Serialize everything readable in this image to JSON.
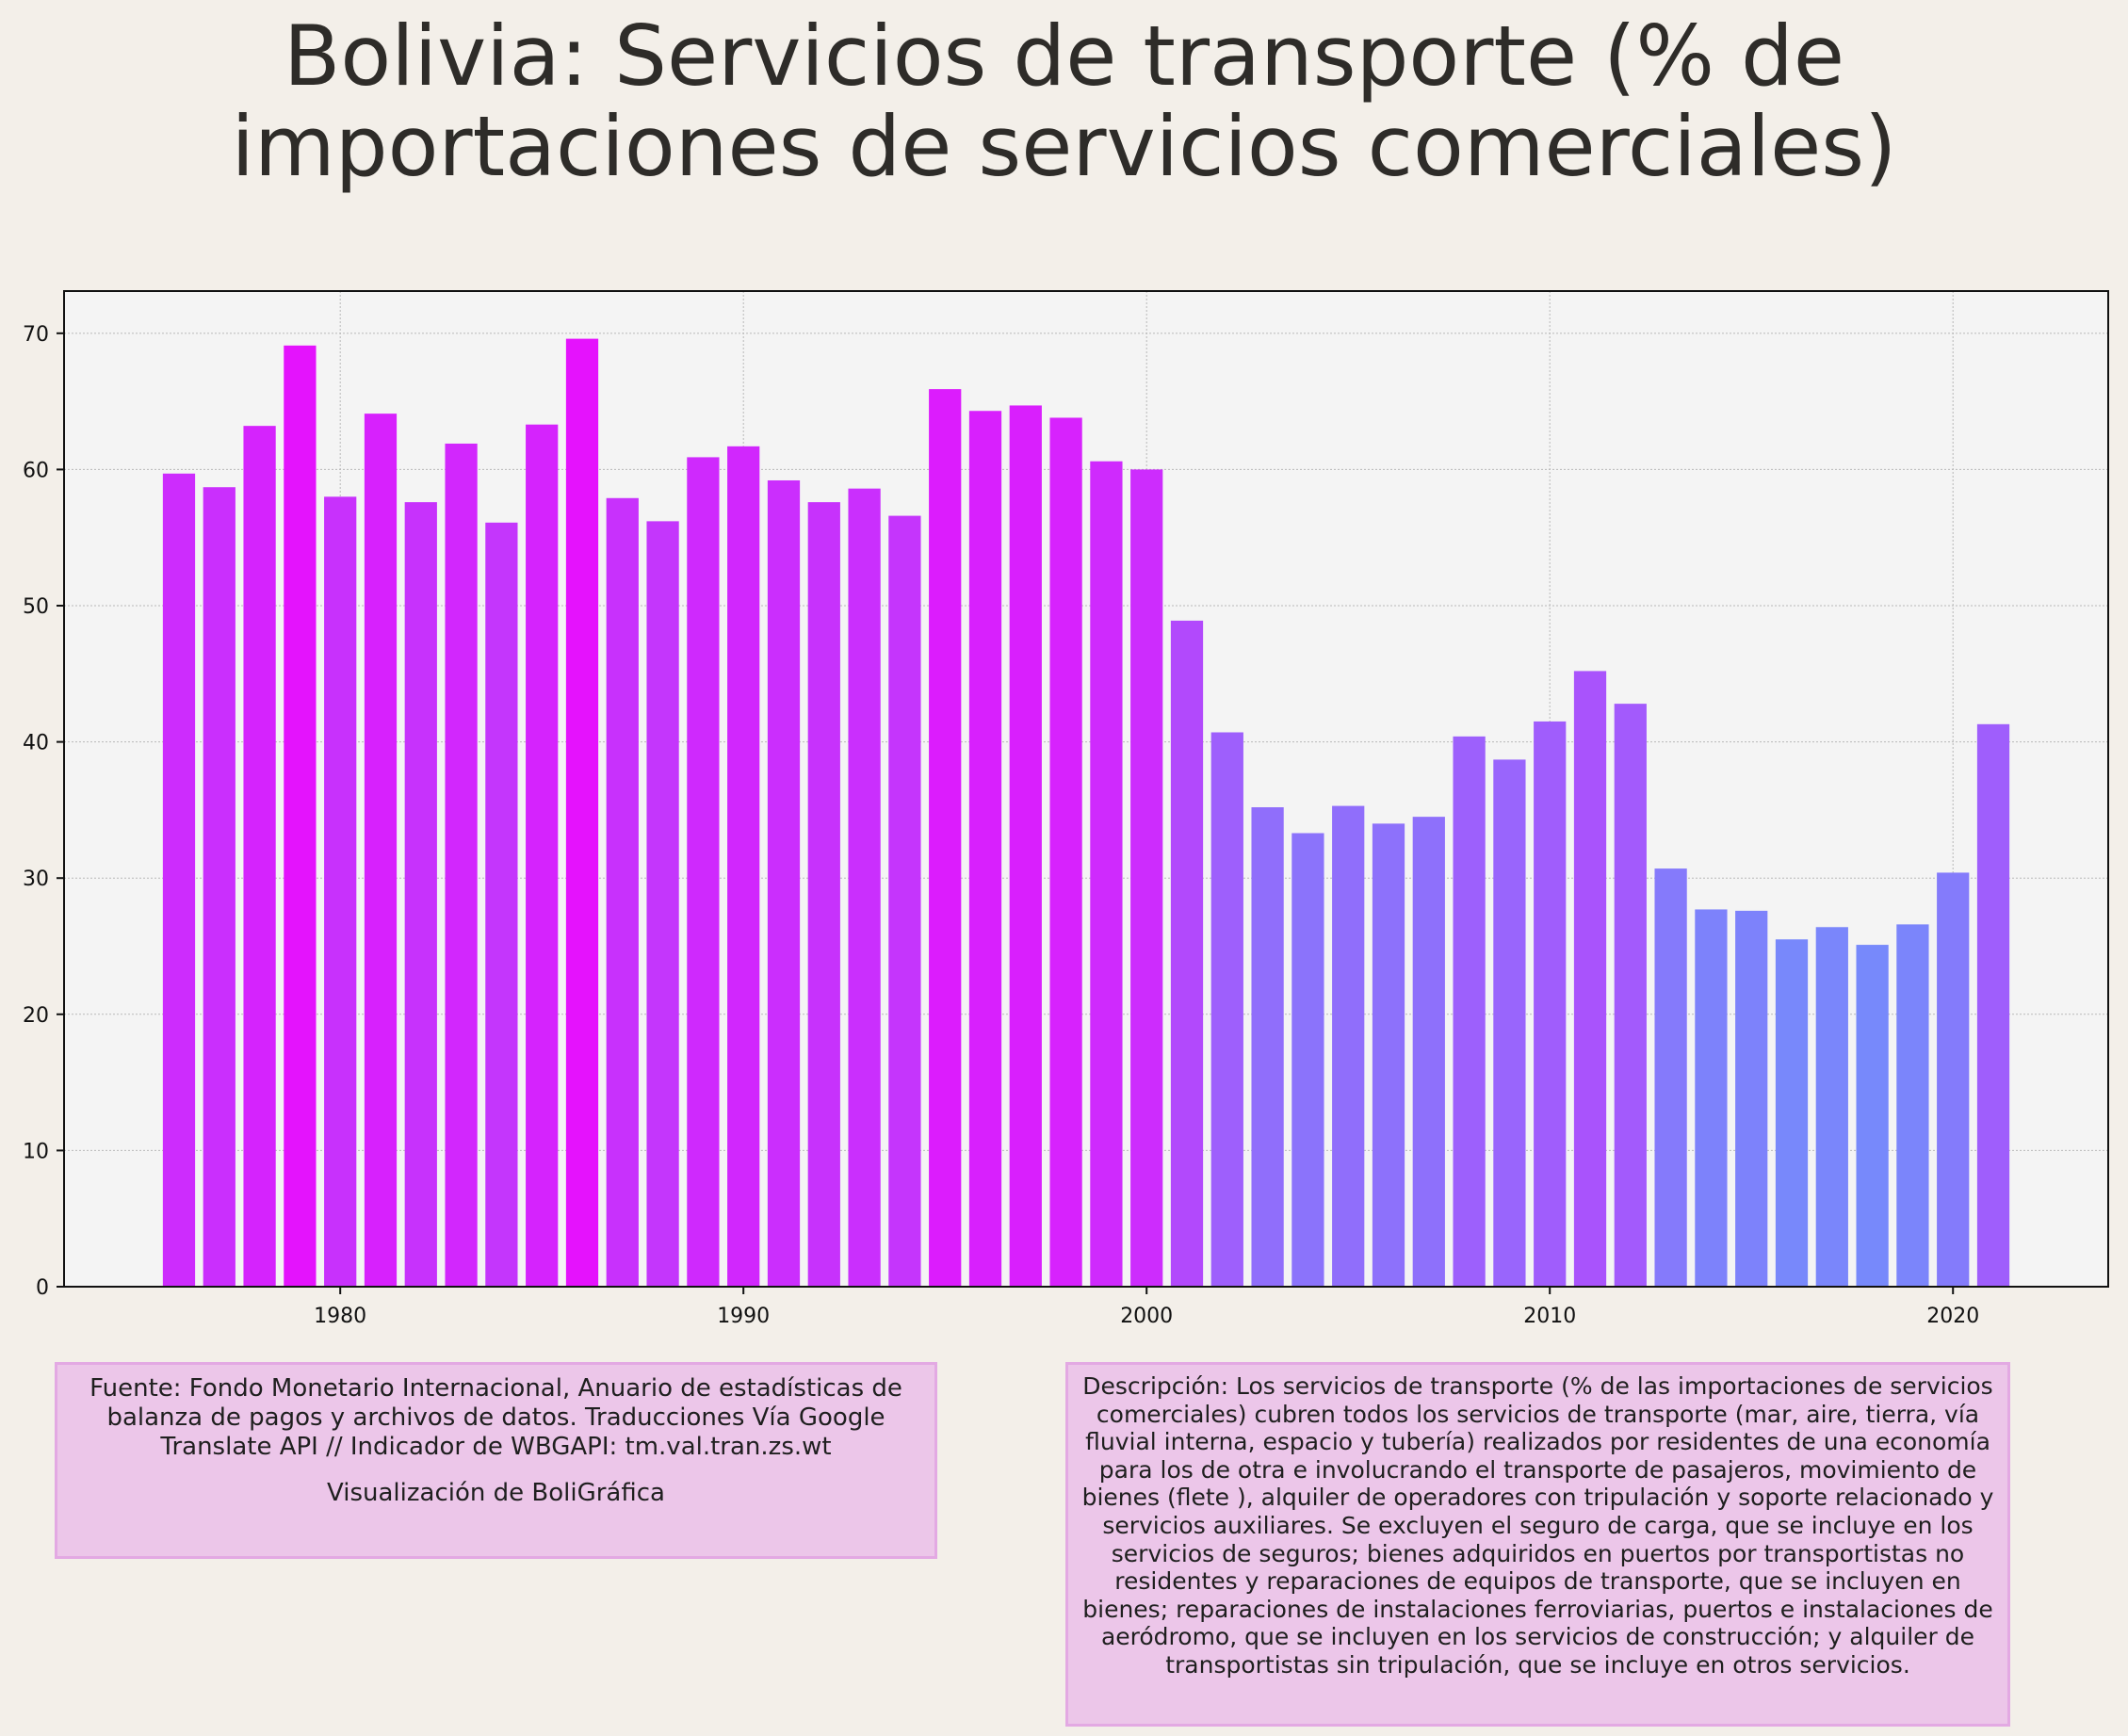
{
  "title": {
    "line1": "Bolivia:  Servicios de transporte (% de",
    "line2": "importaciones de servicios comerciales)"
  },
  "source": {
    "text": "Fuente: Fondo Monetario Internacional, Anuario de estadísticas de balanza de pagos y archivos de datos. Traducciones Vía Google Translate API // Indicador de WBGAPI: tm.val.tran.zs.wt",
    "credit": "Visualización de BoliGráfica"
  },
  "description": {
    "text": "Descripción: Los servicios de transporte (% de las importaciones de servicios comerciales) cubren todos los servicios de transporte (mar, aire, tierra, vía fluvial interna, espacio y tubería) realizados por residentes de una economía para los de otra e involucrando el transporte de pasajeros, movimiento de bienes (flete ), alquiler de operadores con tripulación y soporte relacionado y servicios auxiliares. Se excluyen el seguro de carga, que se incluye en los servicios de seguros; bienes adquiridos en puertos por transportistas no residentes y reparaciones de equipos de transporte, que se incluyen en bienes; reparaciones de instalaciones ferroviarias, puertos e instalaciones de aeródromo, que se incluyen en los servicios de construcción; y alquiler de transportistas sin tripulación, que se incluye en otros servicios."
  },
  "colors": {
    "background": "#f3efe9",
    "plot_background": "#f4f4f4",
    "bar_high": "#e512fd",
    "bar_low": "#7789fb",
    "box_fill": "#ecc6e9",
    "box_border": "#e3a9e3"
  },
  "chart_data": {
    "type": "bar",
    "x": [
      1976,
      1977,
      1978,
      1979,
      1980,
      1981,
      1982,
      1983,
      1984,
      1985,
      1986,
      1987,
      1988,
      1989,
      1990,
      1991,
      1992,
      1993,
      1994,
      1995,
      1996,
      1997,
      1998,
      1999,
      2000,
      2001,
      2002,
      2003,
      2004,
      2005,
      2006,
      2007,
      2008,
      2009,
      2010,
      2011,
      2012,
      2013,
      2014,
      2015,
      2016,
      2017,
      2018,
      2019,
      2020,
      2021
    ],
    "values": [
      59.7,
      58.7,
      63.2,
      69.1,
      58.0,
      64.1,
      57.6,
      61.9,
      56.1,
      63.3,
      69.6,
      57.9,
      56.2,
      60.9,
      61.7,
      59.2,
      57.6,
      58.6,
      56.6,
      65.9,
      64.3,
      64.7,
      63.8,
      60.6,
      60.0,
      48.9,
      40.7,
      35.2,
      33.3,
      35.3,
      34.0,
      34.5,
      40.4,
      38.7,
      41.5,
      45.2,
      42.8,
      30.7,
      27.7,
      27.6,
      25.5,
      26.4,
      25.1,
      26.6,
      30.4,
      41.3
    ],
    "xticks": [
      1980,
      1990,
      2000,
      2010,
      2020
    ],
    "yticks": [
      0,
      10,
      20,
      30,
      40,
      50,
      60,
      70
    ],
    "xlim": [
      1973.15,
      2023.85
    ],
    "ylim": [
      0,
      73.1
    ],
    "grid": true,
    "xlabel": "",
    "ylabel": ""
  }
}
